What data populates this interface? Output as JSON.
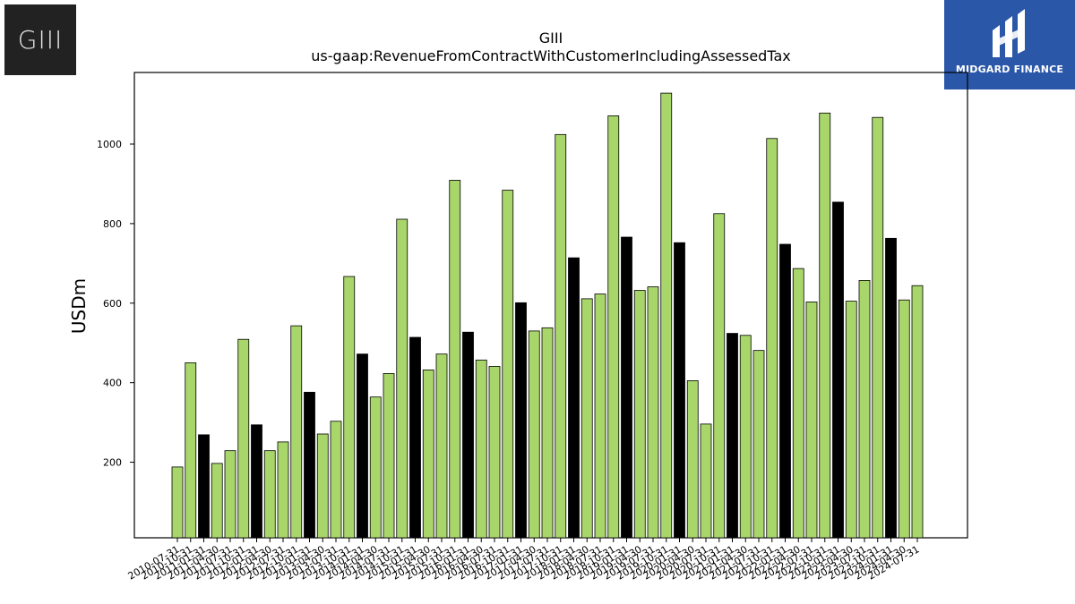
{
  "logos": {
    "left_text": "GIII",
    "right_text": "MIDGARD FINANCE"
  },
  "colors": {
    "bar_primary": "#a9d66b",
    "bar_highlight": "#000000",
    "bar_edge": "#000000",
    "logo_right_bg": "#2b57a8",
    "logo_left_bg": "#222222"
  },
  "chart_data": {
    "type": "bar",
    "title": "GIII",
    "subtitle": "us-gaap:RevenueFromContractWithCustomerIncludingAssessedTax",
    "xlabel": "",
    "ylabel": "USDm",
    "ylim": [
      10,
      1180
    ],
    "yticks": [
      200,
      400,
      600,
      800,
      1000
    ],
    "grid": false,
    "legend": "none",
    "categories": [
      "2010-07-31",
      "2010-10-31",
      "2011-01-31",
      "2011-04-30",
      "2011-07-31",
      "2011-10-31",
      "2012-01-31",
      "2012-04-30",
      "2012-07-31",
      "2012-10-31",
      "2013-01-31",
      "2013-04-30",
      "2013-07-31",
      "2013-10-31",
      "2014-01-31",
      "2014-04-30",
      "2014-07-31",
      "2014-10-31",
      "2015-01-31",
      "2015-04-30",
      "2015-07-31",
      "2015-10-31",
      "2016-01-31",
      "2016-04-30",
      "2016-07-31",
      "2016-10-31",
      "2017-01-31",
      "2017-04-30",
      "2017-07-31",
      "2017-10-31",
      "2018-01-31",
      "2018-04-30",
      "2018-07-31",
      "2018-10-31",
      "2019-01-31",
      "2019-04-30",
      "2019-07-31",
      "2019-10-31",
      "2020-01-31",
      "2020-04-30",
      "2020-07-31",
      "2020-10-31",
      "2021-01-31",
      "2021-04-30",
      "2021-07-31",
      "2021-10-31",
      "2022-01-31",
      "2022-04-30",
      "2022-07-31",
      "2022-10-31",
      "2023-01-31",
      "2023-04-30",
      "2023-07-31",
      "2023-10-31",
      "2024-01-31",
      "2024-04-30",
      "2024-07-31"
    ],
    "values": [
      188,
      450,
      269,
      197,
      229,
      509,
      294,
      229,
      251,
      543,
      376,
      271,
      303,
      667,
      472,
      364,
      423,
      811,
      514,
      432,
      472,
      909,
      527,
      457,
      441,
      884,
      601,
      530,
      538,
      1024,
      714,
      611,
      623,
      1071,
      766,
      632,
      641,
      1128,
      752,
      405,
      296,
      825,
      524,
      519,
      481,
      1014,
      748,
      687,
      603,
      1078,
      854,
      605,
      657,
      1067,
      763,
      608,
      644
    ],
    "highlight": [
      false,
      false,
      true,
      false,
      false,
      false,
      true,
      false,
      false,
      false,
      true,
      false,
      false,
      false,
      true,
      false,
      false,
      false,
      true,
      false,
      false,
      false,
      true,
      false,
      false,
      false,
      true,
      false,
      false,
      false,
      true,
      false,
      false,
      false,
      true,
      false,
      false,
      false,
      true,
      false,
      false,
      false,
      true,
      false,
      false,
      false,
      true,
      false,
      false,
      false,
      true,
      false,
      false,
      false,
      true,
      false,
      false
    ]
  }
}
